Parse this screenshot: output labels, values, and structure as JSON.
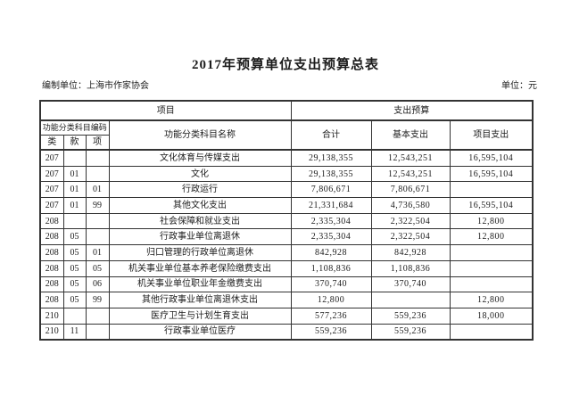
{
  "page": {
    "title": "2017年预算单位支出预算总表",
    "prepared_by": "编制单位：上海市作家协会",
    "unit": "单位：元"
  },
  "table": {
    "header": {
      "project": "项目",
      "expenditure_budget": "支出预算",
      "code_group": "功能分类科目编码",
      "subject_name": "功能分类科目名称",
      "total": "合计",
      "basic": "基本支出",
      "project_expenditure": "项目支出",
      "class": "类",
      "section": "款",
      "item": "项"
    },
    "rows": [
      {
        "cls": "207",
        "sec": "",
        "itm": "",
        "name": "文化体育与传媒支出",
        "total": "29,138,355",
        "basic": "12,543,251",
        "project": "16,595,104"
      },
      {
        "cls": "207",
        "sec": "01",
        "itm": "",
        "name": "文化",
        "total": "29,138,355",
        "basic": "12,543,251",
        "project": "16,595,104"
      },
      {
        "cls": "207",
        "sec": "01",
        "itm": "01",
        "name": "行政运行",
        "total": "7,806,671",
        "basic": "7,806,671",
        "project": ""
      },
      {
        "cls": "207",
        "sec": "01",
        "itm": "99",
        "name": "其他文化支出",
        "total": "21,331,684",
        "basic": "4,736,580",
        "project": "16,595,104"
      },
      {
        "cls": "208",
        "sec": "",
        "itm": "",
        "name": "社会保障和就业支出",
        "total": "2,335,304",
        "basic": "2,322,504",
        "project": "12,800"
      },
      {
        "cls": "208",
        "sec": "05",
        "itm": "",
        "name": "行政事业单位离退休",
        "total": "2,335,304",
        "basic": "2,322,504",
        "project": "12,800"
      },
      {
        "cls": "208",
        "sec": "05",
        "itm": "01",
        "name": "归口管理的行政单位离退休",
        "total": "842,928",
        "basic": "842,928",
        "project": ""
      },
      {
        "cls": "208",
        "sec": "05",
        "itm": "05",
        "name": "机关事业单位基本养老保险缴费支出",
        "total": "1,108,836",
        "basic": "1,108,836",
        "project": ""
      },
      {
        "cls": "208",
        "sec": "05",
        "itm": "06",
        "name": "机关事业单位职业年金缴费支出",
        "total": "370,740",
        "basic": "370,740",
        "project": ""
      },
      {
        "cls": "208",
        "sec": "05",
        "itm": "99",
        "name": "其他行政事业单位离退休支出",
        "total": "12,800",
        "basic": "",
        "project": "12,800"
      },
      {
        "cls": "210",
        "sec": "",
        "itm": "",
        "name": "医疗卫生与计划生育支出",
        "total": "577,236",
        "basic": "559,236",
        "project": "18,000"
      },
      {
        "cls": "210",
        "sec": "11",
        "itm": "",
        "name": "行政事业单位医疗",
        "total": "559,236",
        "basic": "559,236",
        "project": ""
      }
    ]
  }
}
